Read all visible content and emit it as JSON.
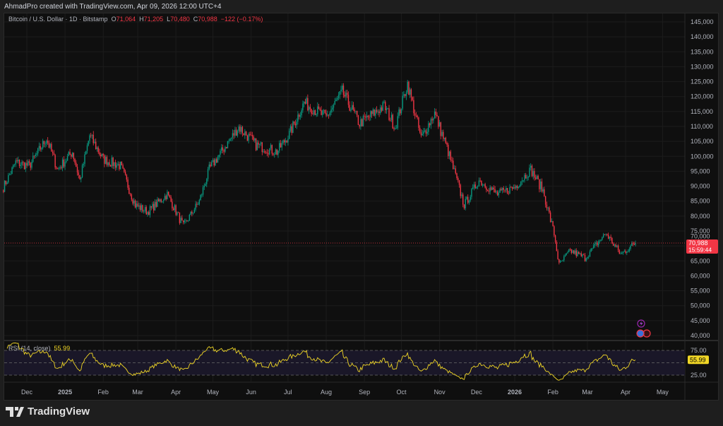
{
  "credit": "AhmadPro created with TradingView.com, Apr 09, 2026 12:00 UTC+4",
  "legend": {
    "symbol": "Bitcoin / U.S. Dollar · 1D · Bitstamp",
    "o_label": "O",
    "o": "71,064",
    "h_label": "H",
    "h": "71,205",
    "l_label": "L",
    "l": "70,480",
    "c_label": "C",
    "c": "70,988",
    "change": "−122 (−0.17%)"
  },
  "rsi_legend": {
    "name": "RSI (14, close)",
    "value": "55.99"
  },
  "price_label": {
    "value": "70,988",
    "countdown": "15:59:44"
  },
  "rsi_label": "55.99",
  "brand": "TradingView",
  "colors": {
    "up": "#089981",
    "down": "#f23645",
    "rsi": "#f0d626",
    "background": "#0f0f0f"
  },
  "chart_data": {
    "type": "candlestick",
    "timeframe": "1D",
    "ylim": [
      40000,
      145000
    ],
    "y_ticks": [
      "145,000",
      "140,000",
      "135,000",
      "130,000",
      "125,000",
      "120,000",
      "115,000",
      "110,000",
      "105,000",
      "100,000",
      "95,000",
      "90,000",
      "85,000",
      "80,000",
      "75,000",
      "70,000",
      "65,000",
      "60,000",
      "55,000",
      "50,000",
      "45,000",
      "40,000"
    ],
    "x_ticks": [
      {
        "label": "Dec",
        "date": "2024-12-01"
      },
      {
        "label": "2025",
        "date": "2025-01-01",
        "bold": true
      },
      {
        "label": "Feb",
        "date": "2025-02-01"
      },
      {
        "label": "Mar",
        "date": "2025-03-01"
      },
      {
        "label": "Apr",
        "date": "2025-04-01"
      },
      {
        "label": "May",
        "date": "2025-05-01"
      },
      {
        "label": "Jun",
        "date": "2025-06-01"
      },
      {
        "label": "Jul",
        "date": "2025-07-01"
      },
      {
        "label": "Aug",
        "date": "2025-08-01"
      },
      {
        "label": "Sep",
        "date": "2025-09-01"
      },
      {
        "label": "Oct",
        "date": "2025-10-01"
      },
      {
        "label": "Nov",
        "date": "2025-11-01"
      },
      {
        "label": "Dec",
        "date": "2025-12-01"
      },
      {
        "label": "2026",
        "date": "2026-01-01",
        "bold": true
      },
      {
        "label": "Feb",
        "date": "2026-02-01"
      },
      {
        "label": "Mar",
        "date": "2026-03-01"
      },
      {
        "label": "Apr",
        "date": "2026-04-01"
      },
      {
        "label": "May",
        "date": "2026-05-01"
      }
    ],
    "close_path": [
      [
        "2024-11-12",
        89700
      ],
      [
        "2024-11-22",
        98000
      ],
      [
        "2024-12-03",
        96800
      ],
      [
        "2024-12-17",
        106000
      ],
      [
        "2024-12-26",
        95600
      ],
      [
        "2025-01-07",
        101500
      ],
      [
        "2025-01-13",
        92000
      ],
      [
        "2025-01-21",
        107000
      ],
      [
        "2025-02-01",
        99000
      ],
      [
        "2025-02-15",
        96800
      ],
      [
        "2025-02-27",
        83700
      ],
      [
        "2025-03-09",
        81400
      ],
      [
        "2025-03-25",
        87300
      ],
      [
        "2025-04-07",
        76600
      ],
      [
        "2025-04-20",
        85000
      ],
      [
        "2025-04-28",
        95600
      ],
      [
        "2025-05-10",
        102700
      ],
      [
        "2025-05-22",
        109800
      ],
      [
        "2025-06-05",
        103800
      ],
      [
        "2025-06-22",
        101500
      ],
      [
        "2025-07-02",
        107400
      ],
      [
        "2025-07-14",
        118000
      ],
      [
        "2025-08-01",
        113000
      ],
      [
        "2025-08-14",
        121600
      ],
      [
        "2025-08-28",
        111000
      ],
      [
        "2025-09-17",
        116900
      ],
      [
        "2025-09-26",
        109800
      ],
      [
        "2025-10-06",
        124400
      ],
      [
        "2025-10-17",
        106000
      ],
      [
        "2025-10-28",
        114500
      ],
      [
        "2025-11-08",
        101500
      ],
      [
        "2025-11-21",
        83700
      ],
      [
        "2025-12-03",
        92000
      ],
      [
        "2025-12-18",
        87300
      ],
      [
        "2026-01-01",
        89700
      ],
      [
        "2026-01-14",
        95600
      ],
      [
        "2026-01-24",
        88500
      ],
      [
        "2026-02-02",
        74000
      ],
      [
        "2026-02-06",
        63600
      ],
      [
        "2026-02-15",
        68400
      ],
      [
        "2026-02-27",
        66000
      ],
      [
        "2026-03-16",
        74300
      ],
      [
        "2026-03-28",
        67200
      ],
      [
        "2026-04-09",
        70988
      ]
    ],
    "last_close": 70988,
    "rsi": {
      "period": 14,
      "levels": [
        75,
        50,
        25
      ],
      "y_ticks": [
        "75.00",
        "25.00"
      ],
      "last": 55.99
    }
  }
}
